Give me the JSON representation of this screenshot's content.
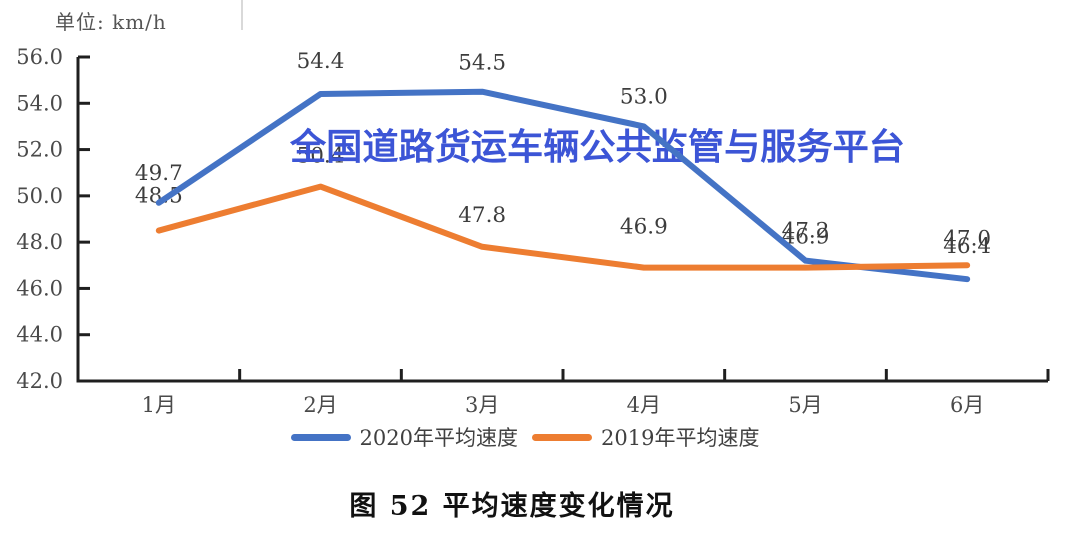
{
  "chart_data": {
    "type": "line",
    "title": "图 52 平均速度变化情况",
    "unit_label": "单位: km/h",
    "watermark": "全国道路货运车辆公共监管与服务平台",
    "categories": [
      "1月",
      "2月",
      "3月",
      "4月",
      "5月",
      "6月"
    ],
    "series": [
      {
        "name": "2020年平均速度",
        "color": "#4473C5",
        "values": [
          49.7,
          54.4,
          54.5,
          53.0,
          47.2,
          46.4
        ],
        "label_dy": [
          -23,
          -26,
          -22,
          -23,
          -23,
          -26
        ]
      },
      {
        "name": "2019年平均速度",
        "color": "#ED7D31",
        "values": [
          48.5,
          50.4,
          47.8,
          46.9,
          46.9,
          47.0
        ],
        "label_dy": [
          -28,
          -24,
          -25,
          -34,
          -24,
          -20
        ]
      }
    ],
    "ylim": [
      42,
      56
    ],
    "ytick_step": 2,
    "ytick_labels": [
      "42.0",
      "44.0",
      "46.0",
      "48.0",
      "50.0",
      "52.0",
      "54.0",
      "56.0"
    ],
    "grid": false,
    "legend_position": "bottom-center",
    "colors": {
      "axis": "#1f1f1f",
      "tick_labels": "#4a4a4a",
      "data_labels": "#3d3d3d",
      "watermark": "#3c55d6"
    }
  }
}
